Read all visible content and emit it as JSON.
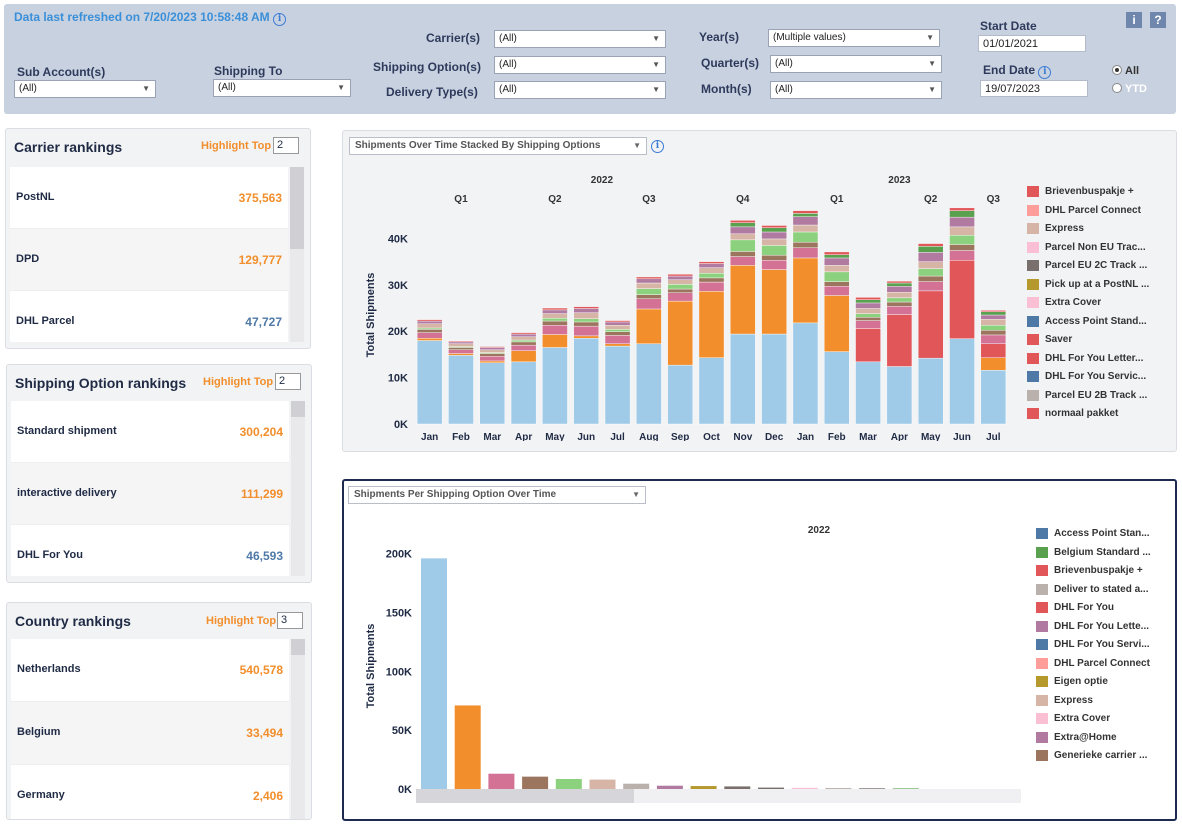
{
  "header": {
    "refreshed": "Data last refreshed on 7/20/2023 10:58:48 AM",
    "info_glyph": "i",
    "help_glyph": "?"
  },
  "filters": {
    "sub_account": {
      "label": "Sub Account(s)",
      "value": "(All)"
    },
    "shipping_to": {
      "label": "Shipping To",
      "value": "(All)"
    },
    "carrier": {
      "label": "Carrier(s)",
      "value": "(All)"
    },
    "shipping_option": {
      "label": "Shipping Option(s)",
      "value": "(All)"
    },
    "delivery_type": {
      "label": "Delivery Type(s)",
      "value": "(All)"
    },
    "year": {
      "label": "Year(s)",
      "value": "(Multiple values)"
    },
    "quarter": {
      "label": "Quarter(s)",
      "value": "(All)"
    },
    "month": {
      "label": "Month(s)",
      "value": "(All)"
    },
    "start_date": {
      "label": "Start Date",
      "value": "01/01/2021"
    },
    "end_date": {
      "label": "End Date",
      "value": "19/07/2023"
    },
    "period": {
      "options": [
        "All",
        "YTD"
      ],
      "selected": "All"
    }
  },
  "carrier_rankings": {
    "title": "Carrier rankings",
    "highlight_label": "Highlight Top",
    "highlight_value": "2",
    "rows": [
      {
        "name": "PostNL",
        "value": "375,563",
        "color": "#f28e2b"
      },
      {
        "name": "DPD",
        "value": "129,777",
        "color": "#f28e2b"
      },
      {
        "name": "DHL Parcel",
        "value": "47,727",
        "color": "#4e79a7"
      }
    ]
  },
  "shipping_option_rankings": {
    "title": "Shipping Option  rankings",
    "highlight_label": "Highlight Top",
    "highlight_value": "2",
    "rows": [
      {
        "name": "Standard shipment",
        "value": "300,204",
        "color": "#f28e2b"
      },
      {
        "name": "interactive delivery",
        "value": "111,299",
        "color": "#f28e2b"
      },
      {
        "name": "DHL For You",
        "value": "46,593",
        "color": "#4e79a7"
      }
    ]
  },
  "country_rankings": {
    "title": "Country rankings",
    "highlight_label": "Highlight Top",
    "highlight_value": "3",
    "rows": [
      {
        "name": "Netherlands",
        "value": "540,578",
        "color": "#f28e2b"
      },
      {
        "name": "Belgium",
        "value": "33,494",
        "color": "#f28e2b"
      },
      {
        "name": "Germany",
        "value": "2,406",
        "color": "#f28e2b"
      }
    ]
  },
  "chart1": {
    "selector": "Shipments Over Time Stacked By Shipping Options",
    "legend": [
      {
        "label": "Brievenbuspakje +",
        "color": "#e15759"
      },
      {
        "label": "DHL Parcel Connect",
        "color": "#ff9d9a"
      },
      {
        "label": "Express",
        "color": "#d7b5a6"
      },
      {
        "label": "Parcel Non EU Trac...",
        "color": "#fabfd2"
      },
      {
        "label": "Parcel EU 2C Track ...",
        "color": "#79706e"
      },
      {
        "label": "Pick up at a PostNL ...",
        "color": "#b6992d"
      },
      {
        "label": "Extra Cover",
        "color": "#fabfd2"
      },
      {
        "label": "Access Point Stand...",
        "color": "#4e79a7"
      },
      {
        "label": "Saver",
        "color": "#e15759"
      },
      {
        "label": "DHL For You Letter...",
        "color": "#e15759"
      },
      {
        "label": "DHL For You Servic...",
        "color": "#4e79a7"
      },
      {
        "label": "Parcel EU 2B Track ...",
        "color": "#bab0ac"
      },
      {
        "label": "normaal pakket",
        "color": "#e15759"
      }
    ]
  },
  "chart2": {
    "selector": "Shipments Per Shipping Option Over Time",
    "legend": [
      {
        "label": "Access Point Stan...",
        "color": "#4e79a7"
      },
      {
        "label": "Belgium Standard ...",
        "color": "#59a14f"
      },
      {
        "label": "Brievenbuspakje +",
        "color": "#e15759"
      },
      {
        "label": "Deliver to stated a...",
        "color": "#bab0ac"
      },
      {
        "label": "DHL For You",
        "color": "#e15759"
      },
      {
        "label": "DHL For You Lette...",
        "color": "#b07aa1"
      },
      {
        "label": "DHL For You Servi...",
        "color": "#4e79a7"
      },
      {
        "label": "DHL Parcel Connect",
        "color": "#ff9d9a"
      },
      {
        "label": "Eigen optie",
        "color": "#b6992d"
      },
      {
        "label": "Express",
        "color": "#d7b5a6"
      },
      {
        "label": "Extra Cover",
        "color": "#fabfd2"
      },
      {
        "label": "Extra@Home",
        "color": "#b07aa1"
      },
      {
        "label": "Generieke carrier ...",
        "color": "#9c755f"
      }
    ]
  },
  "chart_data": [
    {
      "type": "bar",
      "stacked": true,
      "ylabel": "Total Shipments",
      "ylim": [
        0,
        47000
      ],
      "yticks": [
        0,
        10000,
        20000,
        30000,
        40000
      ],
      "ytick_labels": [
        "0K",
        "10K",
        "20K",
        "30K",
        "40K"
      ],
      "years": [
        {
          "label": "2022",
          "from": 0,
          "to": 11
        },
        {
          "label": "2023",
          "from": 12,
          "to": 18
        }
      ],
      "quarters": [
        {
          "label": "Q1",
          "from": 0,
          "to": 2
        },
        {
          "label": "Q2",
          "from": 3,
          "to": 5
        },
        {
          "label": "Q3",
          "from": 6,
          "to": 8
        },
        {
          "label": "Q4",
          "from": 9,
          "to": 11
        },
        {
          "label": "Q1",
          "from": 12,
          "to": 14
        },
        {
          "label": "Q2",
          "from": 15,
          "to": 17
        },
        {
          "label": "Q3",
          "from": 18,
          "to": 18
        }
      ],
      "categories": [
        "Jan",
        "Feb",
        "Mar",
        "Apr",
        "May",
        "Jun",
        "Jul",
        "Aug",
        "Sep",
        "Oct",
        "Nov",
        "Dec",
        "Jan",
        "Feb",
        "Mar",
        "Apr",
        "May",
        "Jun",
        "Jul"
      ],
      "series": [
        {
          "color": "#a0cbe8",
          "values": [
            18000,
            14800,
            13200,
            13400,
            16500,
            18500,
            16800,
            17300,
            12700,
            14300,
            19400,
            19400,
            21800,
            15600,
            13400,
            12400,
            14200,
            18400,
            11600
          ]
        },
        {
          "color": "#f28e2b",
          "values": [
            500,
            400,
            400,
            2400,
            2800,
            500,
            500,
            7500,
            13800,
            14300,
            14800,
            13900,
            14000,
            12100,
            0,
            0,
            0,
            0,
            2700
          ]
        },
        {
          "color": "#e15759",
          "values": [
            0,
            0,
            0,
            0,
            0,
            0,
            0,
            0,
            0,
            0,
            0,
            0,
            0,
            0,
            7200,
            11200,
            14500,
            16900,
            3000
          ]
        },
        {
          "color": "#d37295",
          "values": [
            1200,
            800,
            1000,
            1200,
            2000,
            2100,
            1800,
            2200,
            1800,
            2000,
            1900,
            2000,
            2200,
            2000,
            1700,
            1800,
            2000,
            2100,
            1900
          ]
        },
        {
          "color": "#9c755f",
          "values": [
            700,
            500,
            600,
            700,
            900,
            900,
            800,
            900,
            800,
            900,
            1100,
            1100,
            1200,
            1000,
            700,
            900,
            1200,
            1300,
            1000
          ]
        },
        {
          "color": "#8cd17d",
          "values": [
            300,
            200,
            200,
            400,
            600,
            700,
            500,
            1300,
            1000,
            1000,
            2500,
            2100,
            2200,
            2100,
            800,
            900,
            1600,
            2000,
            1100
          ]
        },
        {
          "color": "#d7b5a6",
          "values": [
            900,
            600,
            600,
            700,
            1000,
            1300,
            900,
            1200,
            1000,
            1200,
            1300,
            1400,
            1500,
            1400,
            1100,
            1200,
            1500,
            1800,
            1300
          ]
        },
        {
          "color": "#b07aa1",
          "values": [
            600,
            400,
            500,
            600,
            800,
            900,
            700,
            900,
            800,
            900,
            1500,
            1500,
            1800,
            1600,
            1200,
            1300,
            2000,
            2100,
            900
          ]
        },
        {
          "color": "#59a14f",
          "values": [
            0,
            0,
            0,
            0,
            0,
            0,
            0,
            0,
            0,
            0,
            900,
            900,
            700,
            700,
            700,
            700,
            1300,
            1400,
            700
          ]
        },
        {
          "color": "#e15759",
          "values": [
            300,
            200,
            200,
            300,
            400,
            400,
            300,
            400,
            400,
            400,
            500,
            500,
            600,
            600,
            500,
            400,
            600,
            600,
            300
          ]
        }
      ]
    },
    {
      "type": "bar",
      "ylabel": "Total Shipments",
      "year_label": "2022",
      "ylim": [
        0,
        215000
      ],
      "yticks": [
        0,
        50000,
        100000,
        150000,
        200000
      ],
      "ytick_labels": [
        "0K",
        "50K",
        "100K",
        "150K",
        "200K"
      ],
      "bars": [
        {
          "value": 196000,
          "color": "#a0cbe8"
        },
        {
          "value": 71000,
          "color": "#f28e2b"
        },
        {
          "value": 13000,
          "color": "#d37295"
        },
        {
          "value": 10500,
          "color": "#9c755f"
        },
        {
          "value": 8500,
          "color": "#8cd17d"
        },
        {
          "value": 8000,
          "color": "#d7b5a6"
        },
        {
          "value": 4500,
          "color": "#bab0ac"
        },
        {
          "value": 2800,
          "color": "#b07aa1"
        },
        {
          "value": 2500,
          "color": "#b6992d"
        },
        {
          "value": 2200,
          "color": "#79706e"
        },
        {
          "value": 1200,
          "color": "#79706e"
        },
        {
          "value": 1000,
          "color": "#fabfd2"
        },
        {
          "value": 800,
          "color": "#bab0ac"
        },
        {
          "value": 600,
          "color": "#79706e"
        },
        {
          "value": 500,
          "color": "#59a14f"
        }
      ]
    }
  ]
}
